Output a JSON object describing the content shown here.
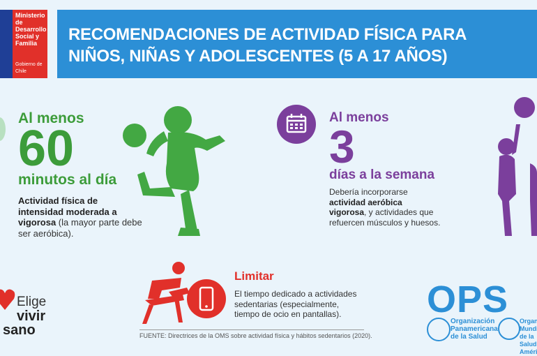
{
  "ministry_logo": {
    "name": "Ministerio de Desarrollo Social y Familia",
    "gobierno": "Gobierno de Chile"
  },
  "header": {
    "line1": "RECOMENDACIONES DE ACTIVIDAD FÍSICA PARA",
    "line2": "NIÑOS, NIÑAS Y ADOLESCENTES (5 A 17 AÑOS)"
  },
  "section_minutes": {
    "prefix": "Al menos",
    "number": "60",
    "unit": "minutos al día",
    "desc_bold": "Actividad física de intensidad moderada a vigorosa",
    "desc_rest": " (la mayor parte debe ser aeróbica).",
    "color": "#3c9c3a"
  },
  "section_days": {
    "prefix": "Al menos",
    "number": "3",
    "unit": "días a la semana",
    "desc_pre": "Debería incorporarse ",
    "desc_bold": "actividad aeróbica vigorosa",
    "desc_rest": ", y actividades que refuercen músculos y huesos.",
    "color": "#7b3f9c"
  },
  "section_limit": {
    "title": "Limitar",
    "desc": "El tiempo dedicado a actividades sedentarias (especialmente, tiempo de ocio en pantallas).",
    "color": "#e1302a"
  },
  "elige_logo": {
    "line1": "Elige",
    "line2": "vivir",
    "line3": "sano"
  },
  "footer": "FUENTE: Directrices de la OMS sobre actividad física y hábitos sedentarios (2020).",
  "ops_logo": {
    "acronym": "OPS",
    "org1": "Organización Panamericana de la Salud",
    "org2": "Organización Mundial de la Salud Américas"
  }
}
